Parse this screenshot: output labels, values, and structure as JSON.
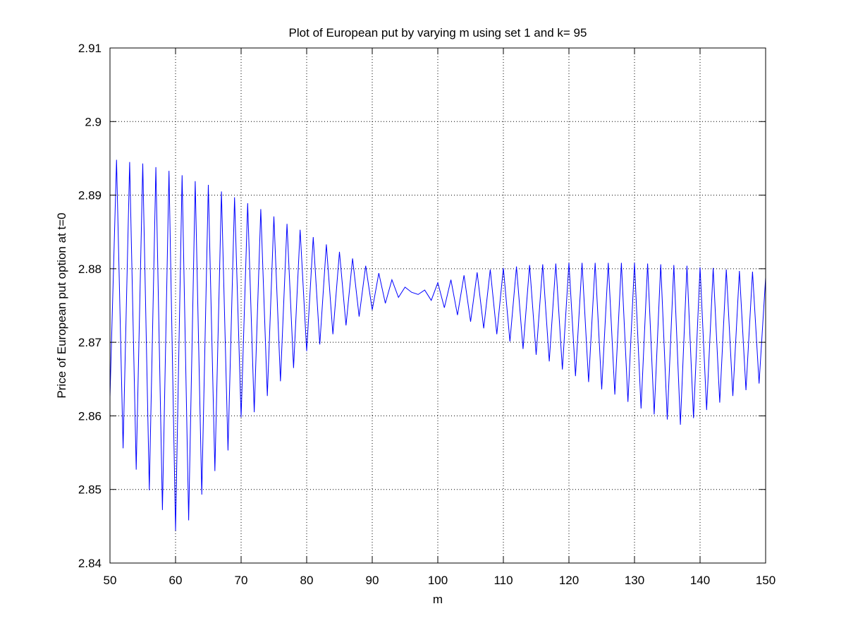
{
  "chart_data": {
    "type": "line",
    "title": "Plot of European put by varying m using set 1 and k= 95",
    "xlabel": "m",
    "ylabel": "Price of European put option at t=0",
    "xlim": [
      50,
      150
    ],
    "ylim": [
      2.84,
      2.91
    ],
    "xticks": [
      50,
      60,
      70,
      80,
      90,
      100,
      110,
      120,
      130,
      140,
      150
    ],
    "yticks": [
      2.84,
      2.85,
      2.86,
      2.87,
      2.88,
      2.89,
      2.9,
      2.91
    ],
    "grid": true,
    "series_color": "#0000ff",
    "series": [
      {
        "x": [
          50,
          51,
          52,
          53,
          54,
          55,
          56,
          57,
          58,
          59,
          60,
          61,
          62,
          63,
          64,
          65,
          66,
          67,
          68,
          69,
          70,
          71,
          72,
          73,
          74,
          75,
          76,
          77,
          78,
          79,
          80,
          81,
          82,
          83,
          84,
          85,
          86,
          87,
          88,
          89,
          90,
          91,
          92,
          93,
          94,
          95,
          96,
          97,
          98,
          99,
          100,
          101,
          102,
          103,
          104,
          105,
          106,
          107,
          108,
          109,
          110,
          111,
          112,
          113,
          114,
          115,
          116,
          117,
          118,
          119,
          120,
          121,
          122,
          123,
          124,
          125,
          126,
          127,
          128,
          129,
          130,
          131,
          132,
          133,
          134,
          135,
          136,
          137,
          138,
          139,
          140,
          141,
          142,
          143,
          144,
          145,
          146,
          147,
          148,
          149,
          150
        ],
        "y": [
          2.8626,
          2.8948,
          2.8556,
          2.8945,
          2.8527,
          2.8943,
          2.8499,
          2.8938,
          2.8472,
          2.8933,
          2.8444,
          2.8927,
          2.8458,
          2.8919,
          2.8493,
          2.8914,
          2.8525,
          2.8905,
          2.8553,
          2.8897,
          2.8598,
          2.8889,
          2.8605,
          2.8881,
          2.8627,
          2.8871,
          2.8647,
          2.8861,
          2.8665,
          2.8853,
          2.8688,
          2.8843,
          2.8697,
          2.8833,
          2.8711,
          2.8823,
          2.8723,
          2.8814,
          2.8735,
          2.8804,
          2.8744,
          2.8794,
          2.8753,
          2.8785,
          2.8761,
          2.8775,
          2.8768,
          2.8765,
          2.8771,
          2.8757,
          2.8781,
          2.8747,
          2.8785,
          2.8737,
          2.8791,
          2.8728,
          2.8795,
          2.8719,
          2.8799,
          2.8711,
          2.8801,
          2.8701,
          2.8803,
          2.8691,
          2.8805,
          2.8683,
          2.8806,
          2.8674,
          2.8807,
          2.8663,
          2.8808,
          2.8654,
          2.8808,
          2.8646,
          2.8808,
          2.8636,
          2.8808,
          2.8629,
          2.8808,
          2.8619,
          2.8808,
          2.861,
          2.8807,
          2.8602,
          2.8806,
          2.8595,
          2.8805,
          2.8588,
          2.8804,
          2.8597,
          2.8802,
          2.8608,
          2.8801,
          2.8618,
          2.8799,
          2.8627,
          2.8797,
          2.8635,
          2.8796,
          2.8644,
          2.8788
        ]
      }
    ]
  }
}
